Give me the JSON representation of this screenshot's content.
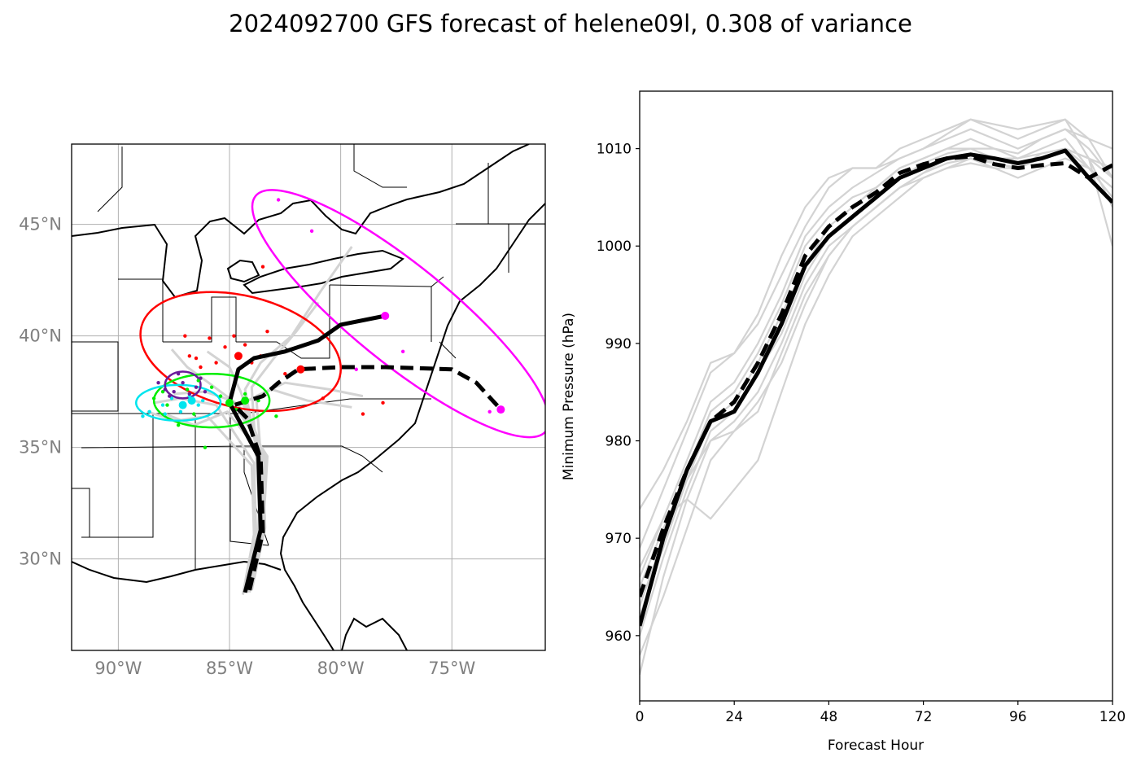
{
  "title": "2024092700 GFS forecast of helene09l, 0.308 of variance",
  "colors": {
    "ensemble": "#d3d3d3",
    "mean": "#000000",
    "magenta": "#ff00ff",
    "red": "#ff0000",
    "green": "#00ee00",
    "cyan": "#00e5ee",
    "purple": "#6a1b9a",
    "grid": "#b0b0b0"
  },
  "chart_data": [
    {
      "type": "map-track",
      "x_ticks": [
        {
          "value": -90,
          "label": "90°W"
        },
        {
          "value": -85,
          "label": "85°W"
        },
        {
          "value": -80,
          "label": "80°W"
        },
        {
          "value": -75,
          "label": "75°W"
        }
      ],
      "y_ticks": [
        {
          "value": 30,
          "label": "30°N"
        },
        {
          "value": 35,
          "label": "35°N"
        },
        {
          "value": 40,
          "label": "40°N"
        },
        {
          "value": 45,
          "label": "45°N"
        }
      ],
      "lon_range": [
        -92.1,
        -70.8
      ],
      "lat_range": [
        25.9,
        48.6
      ],
      "grid": true,
      "mean_track_solid": [
        [
          -84.3,
          28.5
        ],
        [
          -83.6,
          31.3
        ],
        [
          -83.7,
          34.6
        ],
        [
          -85.0,
          37.0
        ],
        [
          -84.6,
          38.5
        ],
        [
          -83.9,
          39.0
        ],
        [
          -82.5,
          39.3
        ],
        [
          -81.0,
          39.8
        ],
        [
          -80.0,
          40.5
        ],
        [
          -78.0,
          40.9
        ]
      ],
      "mean_track_dashed": [
        [
          -84.1,
          28.6
        ],
        [
          -83.5,
          31.2
        ],
        [
          -83.6,
          34.5
        ],
        [
          -84.2,
          36.3
        ],
        [
          -84.8,
          36.9
        ],
        [
          -83.5,
          37.3
        ],
        [
          -82.8,
          37.9
        ],
        [
          -81.9,
          38.5
        ],
        [
          -80.0,
          38.6
        ],
        [
          -78.0,
          38.6
        ],
        [
          -75.0,
          38.5
        ],
        [
          -73.9,
          37.9
        ],
        [
          -72.8,
          36.7
        ]
      ],
      "ensemble_tracks": [
        [
          [
            -84.4,
            28.4
          ],
          [
            -83.8,
            31.0
          ],
          [
            -83.9,
            34.3
          ],
          [
            -85.6,
            36.9
          ],
          [
            -87.2,
            37.2
          ],
          [
            -88.4,
            37.0
          ]
        ],
        [
          [
            -84.2,
            28.5
          ],
          [
            -83.5,
            31.1
          ],
          [
            -83.3,
            34.6
          ],
          [
            -84.9,
            37.1
          ],
          [
            -86.1,
            37.5
          ],
          [
            -87.5,
            37.4
          ]
        ],
        [
          [
            -84.0,
            28.6
          ],
          [
            -83.4,
            31.4
          ],
          [
            -83.5,
            34.8
          ],
          [
            -84.5,
            37.5
          ],
          [
            -85.0,
            38.6
          ],
          [
            -86.0,
            39.3
          ]
        ],
        [
          [
            -84.3,
            28.5
          ],
          [
            -83.6,
            31.2
          ],
          [
            -83.8,
            34.5
          ],
          [
            -84.0,
            37.7
          ],
          [
            -83.0,
            39.0
          ],
          [
            -82.0,
            40.2
          ],
          [
            -81.0,
            41.5
          ]
        ],
        [
          [
            -84.1,
            28.6
          ],
          [
            -83.7,
            31.3
          ],
          [
            -83.6,
            34.7
          ],
          [
            -83.8,
            37.3
          ],
          [
            -82.5,
            37.9
          ],
          [
            -80.5,
            37.6
          ],
          [
            -79.0,
            37.3
          ]
        ],
        [
          [
            -84.4,
            28.4
          ],
          [
            -83.9,
            31.1
          ],
          [
            -84.0,
            34.2
          ],
          [
            -86.0,
            36.4
          ],
          [
            -87.4,
            36.2
          ],
          [
            -88.7,
            36.6
          ]
        ],
        [
          [
            -84.2,
            28.5
          ],
          [
            -83.5,
            31.2
          ],
          [
            -83.4,
            34.6
          ],
          [
            -84.6,
            36.9
          ],
          [
            -85.8,
            37.8
          ],
          [
            -86.9,
            38.6
          ],
          [
            -87.6,
            39.4
          ]
        ],
        [
          [
            -84.0,
            28.6
          ],
          [
            -83.6,
            31.4
          ],
          [
            -83.7,
            34.5
          ],
          [
            -84.3,
            37.6
          ],
          [
            -83.6,
            38.8
          ],
          [
            -82.2,
            40.0
          ],
          [
            -80.9,
            42.0
          ],
          [
            -79.5,
            44.0
          ]
        ],
        [
          [
            -84.3,
            28.5
          ],
          [
            -83.6,
            31.3
          ],
          [
            -83.5,
            34.6
          ],
          [
            -85.1,
            36.6
          ],
          [
            -86.6,
            36.0
          ],
          [
            -87.9,
            36.5
          ]
        ],
        [
          [
            -84.1,
            28.5
          ],
          [
            -83.5,
            31.1
          ],
          [
            -83.6,
            34.5
          ],
          [
            -84.4,
            37.0
          ],
          [
            -83.1,
            37.6
          ],
          [
            -81.5,
            37.1
          ],
          [
            -79.5,
            36.8
          ]
        ]
      ],
      "ellipses": [
        {
          "color": "magenta",
          "center": [
            -77.3,
            41.0
          ],
          "rx": 8.4,
          "ry": 2.2,
          "angle": 39
        },
        {
          "color": "red",
          "center": [
            -84.5,
            39.3
          ],
          "rx": 4.6,
          "ry": 2.5,
          "angle": 14
        },
        {
          "color": "green",
          "center": [
            -85.8,
            37.1
          ],
          "rx": 2.6,
          "ry": 1.2,
          "angle": 0
        },
        {
          "color": "cyan",
          "center": [
            -87.3,
            37.0
          ],
          "rx": 1.9,
          "ry": 0.8,
          "angle": 0
        },
        {
          "color": "purple",
          "center": [
            -87.1,
            37.8
          ],
          "rx": 0.8,
          "ry": 0.6,
          "angle": 0
        }
      ],
      "mean_points": [
        {
          "color": "magenta",
          "lon": -78.0,
          "lat": 40.9
        },
        {
          "color": "magenta",
          "lon": -72.8,
          "lat": 36.7
        },
        {
          "color": "red",
          "lon": -84.6,
          "lat": 39.1
        },
        {
          "color": "red",
          "lon": -81.8,
          "lat": 38.5
        },
        {
          "color": "green",
          "lon": -85.0,
          "lat": 37.0
        },
        {
          "color": "green",
          "lon": -84.3,
          "lat": 37.1
        },
        {
          "color": "cyan",
          "lon": -86.7,
          "lat": 37.1
        },
        {
          "color": "cyan",
          "lon": -87.1,
          "lat": 36.9
        }
      ],
      "scatter_points": [
        {
          "color": "magenta",
          "points": [
            [
              -82.8,
              46.1
            ],
            [
              -81.3,
              44.7
            ],
            [
              -77.2,
              39.3
            ],
            [
              -73.3,
              36.6
            ],
            [
              -79.3,
              38.5
            ]
          ]
        },
        {
          "color": "red",
          "points": [
            [
              -83.5,
              43.1
            ],
            [
              -87.0,
              40.0
            ],
            [
              -84.8,
              40.0
            ],
            [
              -85.9,
              39.9
            ],
            [
              -83.3,
              40.2
            ],
            [
              -85.2,
              39.5
            ],
            [
              -86.5,
              39.0
            ],
            [
              -84.0,
              38.8
            ],
            [
              -82.5,
              38.3
            ],
            [
              -86.3,
              38.6
            ],
            [
              -85.6,
              38.8
            ],
            [
              -83.6,
              39.1
            ],
            [
              -80.8,
              37.2
            ],
            [
              -78.1,
              37.0
            ],
            [
              -79.0,
              36.5
            ],
            [
              -86.8,
              39.1
            ],
            [
              -84.3,
              39.6
            ]
          ]
        },
        {
          "color": "green",
          "points": [
            [
              -88.4,
              37.2
            ],
            [
              -87.8,
              36.9
            ],
            [
              -86.9,
              37.6
            ],
            [
              -86.4,
              38.0
            ],
            [
              -85.4,
              37.3
            ],
            [
              -84.7,
              36.7
            ],
            [
              -83.7,
              37.1
            ],
            [
              -82.9,
              36.4
            ],
            [
              -87.3,
              36.0
            ],
            [
              -86.1,
              35.0
            ],
            [
              -88.0,
              37.5
            ],
            [
              -85.8,
              37.7
            ],
            [
              -84.3,
              37.4
            ],
            [
              -86.6,
              36.5
            ]
          ]
        },
        {
          "color": "cyan",
          "points": [
            [
              -88.6,
              36.6
            ],
            [
              -88.0,
              36.9
            ],
            [
              -87.6,
              37.2
            ],
            [
              -87.2,
              36.6
            ],
            [
              -86.8,
              37.3
            ],
            [
              -86.4,
              36.9
            ],
            [
              -87.9,
              36.5
            ],
            [
              -86.2,
              37.1
            ],
            [
              -88.9,
              36.4
            ]
          ]
        },
        {
          "color": "purple",
          "points": [
            [
              -88.2,
              37.9
            ],
            [
              -87.9,
              37.6
            ],
            [
              -87.5,
              37.5
            ],
            [
              -87.1,
              37.9
            ],
            [
              -86.8,
              37.4
            ],
            [
              -86.5,
              37.7
            ],
            [
              -87.3,
              38.3
            ],
            [
              -86.3,
              38.1
            ],
            [
              -87.7,
              37.3
            ],
            [
              -86.1,
              37.5
            ]
          ]
        }
      ]
    },
    {
      "type": "line",
      "xlabel": "Forecast Hour",
      "ylabel": "Minimum Pressure (hPa)",
      "xlim": [
        0,
        120
      ],
      "ylim": [
        953.3,
        1015.9
      ],
      "x_ticks": [
        0,
        24,
        48,
        72,
        96,
        120
      ],
      "y_ticks": [
        960,
        970,
        980,
        990,
        1000,
        1010
      ],
      "x": [
        0,
        6,
        12,
        18,
        24,
        30,
        36,
        42,
        48,
        54,
        60,
        66,
        72,
        78,
        84,
        90,
        96,
        102,
        108,
        114,
        120
      ],
      "mean_solid": [
        961,
        970,
        977,
        982,
        983,
        987,
        992,
        998,
        1001,
        1003,
        1005,
        1007,
        1008,
        1009,
        1009.4,
        1009,
        1008.5,
        1009,
        1009.8,
        1007,
        1004.5
      ],
      "mean_dashed": [
        964,
        971,
        977,
        982,
        984,
        988,
        993,
        999,
        1002,
        1004,
        1005.5,
        1007.5,
        1008.4,
        1009,
        1009.2,
        1008.4,
        1008,
        1008.3,
        1008.5,
        1007,
        1008.3
      ],
      "ensemble": [
        [
          956,
          966,
          974,
          980,
          982,
          985,
          990,
          996,
          1000,
          1002,
          1004,
          1006,
          1007,
          1008,
          1009,
          1008,
          1007,
          1008,
          1009,
          1008,
          1006
        ],
        [
          960,
          968,
          975,
          981,
          983,
          987,
          991,
          997,
          1001,
          1003,
          1005,
          1007,
          1008.5,
          1009.5,
          1010,
          1009,
          1009,
          1010,
          1011,
          1008,
          1005
        ],
        [
          963,
          970,
          977,
          983,
          985,
          989,
          994,
          1000,
          1003,
          1005,
          1006,
          1008,
          1009,
          1010,
          1011,
          1010,
          1009,
          1009.5,
          1010,
          1009,
          1008
        ],
        [
          966,
          972,
          978,
          984,
          986,
          990,
          995,
          1001,
          1004,
          1006,
          1007.5,
          1009,
          1010,
          1011,
          1012,
          1011,
          1010,
          1011,
          1012,
          1011,
          1010
        ],
        [
          969,
          975,
          981,
          987,
          989,
          992,
          997,
          1002,
          1006,
          1008,
          1008,
          1010,
          1011,
          1012,
          1013,
          1012,
          1011,
          1012,
          1013,
          1009,
          1000
        ],
        [
          973,
          977,
          982,
          988,
          989,
          993,
          999,
          1004,
          1007,
          1008,
          1008,
          1009,
          1010,
          1011.5,
          1013,
          1012.5,
          1012,
          1012.5,
          1013,
          1011,
          1007
        ],
        [
          958,
          964,
          971,
          978,
          981,
          984,
          988,
          994,
          999,
          1002,
          1004,
          1006,
          1007.5,
          1008.5,
          1009,
          1008.5,
          1008,
          1009,
          1010,
          1009,
          1004
        ],
        [
          962,
          969,
          976,
          982,
          984,
          988,
          993,
          998,
          1002,
          1004,
          1006,
          1008,
          1009,
          1010,
          1010,
          1010,
          1009.5,
          1011,
          1012,
          1010,
          1007
        ],
        [
          965,
          971,
          976,
          980,
          981,
          983,
          989,
          995,
          999,
          1002,
          1004,
          1006,
          1007.5,
          1009,
          1009.5,
          1008.5,
          1008,
          1009.5,
          1010,
          1008,
          1006
        ],
        [
          967,
          972,
          974,
          972,
          975,
          978,
          985,
          992,
          997,
          1001,
          1003,
          1005,
          1007,
          1008,
          1008.5,
          1008,
          1008,
          1009,
          1010,
          1009,
          1007
        ]
      ]
    }
  ]
}
